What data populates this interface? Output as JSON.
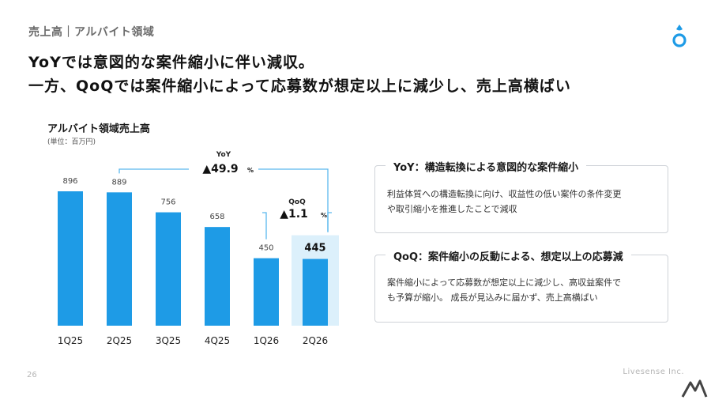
{
  "header": {
    "section": "売上高｜アルバイト領域"
  },
  "headline": {
    "line1": "YoYでは意図的な案件縮小に伴い減収。",
    "line2": "一方、QoQでは案件縮小によって応募数が想定以上に減少し、売上高横ばい"
  },
  "chart_data": {
    "type": "bar",
    "title": "アルバイト領域売上高",
    "unit": "(単位：百万円)",
    "categories": [
      "1Q25",
      "2Q25",
      "3Q25",
      "4Q25",
      "1Q26",
      "2Q26"
    ],
    "values": [
      896,
      889,
      756,
      658,
      450,
      445
    ],
    "highlight_index": 5,
    "bar_color": "#1e9be6",
    "highlight_bg": "#dcf0fb",
    "annotations": [
      {
        "label": "YoY",
        "value": "▲49.9",
        "unit": "%",
        "from": "2Q25",
        "to": "2Q26"
      },
      {
        "label": "QoQ",
        "value": "▲1.1",
        "unit": "%",
        "from": "1Q26",
        "to": "2Q26"
      }
    ],
    "bracket_color": "#5bb8ee"
  },
  "cards": [
    {
      "title": "YoY：構造転換による意図的な案件縮小",
      "lines": [
        "利益体質への構造転換に向け、収益性の低い案件の条件変更",
        "や取引縮小を推進したことで減収"
      ]
    },
    {
      "title": "QoQ：案件縮小の反動による、想定以上の応募減",
      "lines": [
        "案件縮小によって応募数が想定以上に減少し、高収益案件で",
        "も予算が縮小。 成長が見込みに届かず、売上高横ばい"
      ]
    }
  ],
  "footer": {
    "page": "26",
    "company": "Livesense Inc."
  }
}
